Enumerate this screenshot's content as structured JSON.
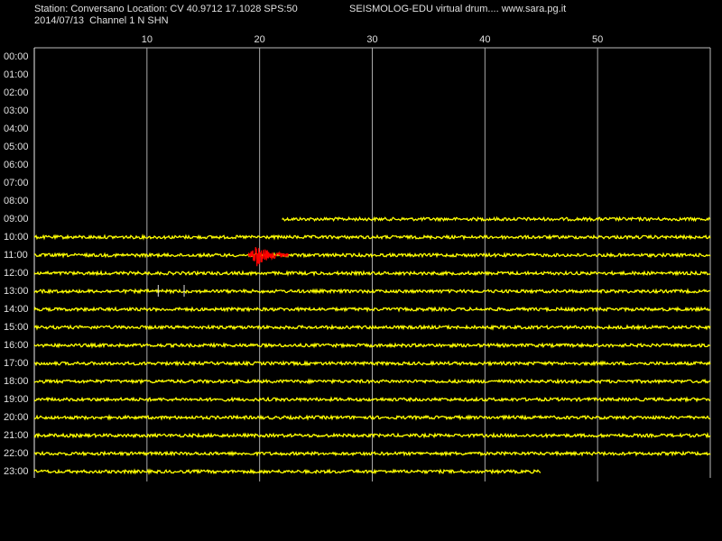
{
  "header": {
    "station": "Station: Conversano Location: CV 40.9712 17.1028 SPS:50",
    "program": "SEISMOLOG-EDU virtual drum.... www.sara.pg.it",
    "date": "2014/07/13  Channel 1 N SHN"
  },
  "x_axis": {
    "lim": [
      0,
      60
    ],
    "ticks": [
      10,
      20,
      30,
      40,
      50
    ]
  },
  "rows": [
    "00:00",
    "01:00",
    "02:00",
    "03:00",
    "04:00",
    "05:00",
    "06:00",
    "07:00",
    "08:00",
    "09:00",
    "10:00",
    "11:00",
    "12:00",
    "13:00",
    "14:00",
    "15:00",
    "16:00",
    "17:00",
    "18:00",
    "19:00",
    "20:00",
    "21:00",
    "22:00",
    "23:00"
  ],
  "trace_color": "#ffff00",
  "traces": [
    {
      "row": 9,
      "start": 22,
      "end": 60
    },
    {
      "row": 10,
      "start": 0,
      "end": 60
    },
    {
      "row": 11,
      "start": 0,
      "end": 60
    },
    {
      "row": 12,
      "start": 0,
      "end": 60
    },
    {
      "row": 13,
      "start": 0,
      "end": 60
    },
    {
      "row": 14,
      "start": 0,
      "end": 60
    },
    {
      "row": 15,
      "start": 0,
      "end": 60
    },
    {
      "row": 16,
      "start": 0,
      "end": 60
    },
    {
      "row": 17,
      "start": 0,
      "end": 60
    },
    {
      "row": 18,
      "start": 0,
      "end": 60
    },
    {
      "row": 19,
      "start": 0,
      "end": 60
    },
    {
      "row": 20,
      "start": 0,
      "end": 60
    },
    {
      "row": 21,
      "start": 0,
      "end": 60
    },
    {
      "row": 22,
      "start": 0,
      "end": 60
    },
    {
      "row": 23,
      "start": 0,
      "end": 45
    }
  ],
  "event": {
    "row": 11,
    "start": 19,
    "end": 22.6,
    "color": "#ff0000"
  },
  "spikes": {
    "row": 13,
    "minutes": [
      11,
      13.3
    ]
  }
}
